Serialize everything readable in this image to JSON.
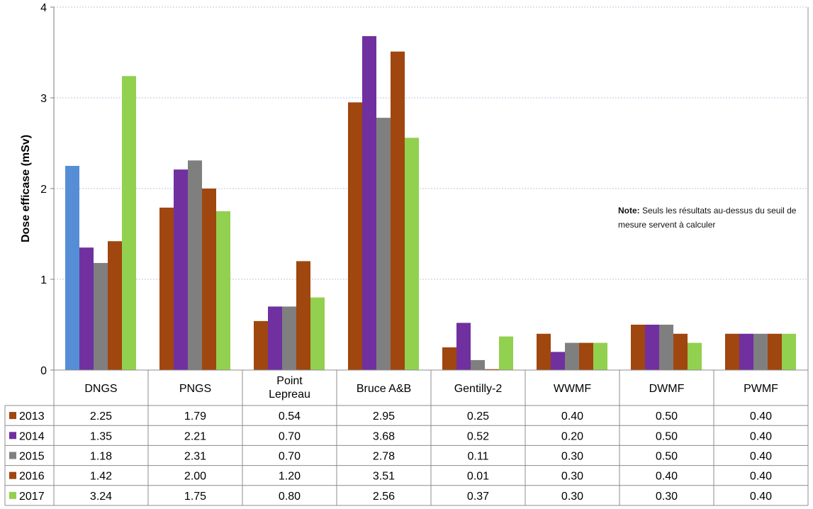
{
  "chart_data": {
    "type": "bar",
    "ylabel": "Dose efficase (mSv)",
    "xlabel": "",
    "ylim": [
      0,
      4
    ],
    "yticks": [
      0,
      1,
      2,
      3,
      4
    ],
    "grid": true,
    "legend": "data table below plot",
    "categories": [
      [
        "DNGS"
      ],
      [
        "PNGS"
      ],
      [
        "Point",
        "Lepreau"
      ],
      [
        "Bruce A&B"
      ],
      [
        "Gentilly-2"
      ],
      [
        "WWMF"
      ],
      [
        "DWMF"
      ],
      [
        "PWMF"
      ]
    ],
    "series": [
      {
        "name": "2013",
        "color": "#a0460f",
        "values": [
          2.25,
          1.79,
          0.54,
          2.95,
          0.25,
          0.4,
          0.5,
          0.4
        ],
        "labels": [
          "2.25",
          "1.79",
          "0.54",
          "2.95",
          "0.25",
          "0.40",
          "0.50",
          "0.40"
        ]
      },
      {
        "name": "2014",
        "color": "#7030a0",
        "values": [
          1.35,
          2.21,
          0.7,
          3.68,
          0.52,
          0.2,
          0.5,
          0.4
        ],
        "labels": [
          "1.35",
          "2.21",
          "0.70",
          "3.68",
          "0.52",
          "0.20",
          "0.50",
          "0.40"
        ]
      },
      {
        "name": "2015",
        "color": "#7f7f7f",
        "values": [
          1.18,
          2.31,
          0.7,
          2.78,
          0.11,
          0.3,
          0.5,
          0.4
        ],
        "labels": [
          "1.18",
          "2.31",
          "0.70",
          "2.78",
          "0.11",
          "0.30",
          "0.50",
          "0.40"
        ]
      },
      {
        "name": "2016",
        "color": "#a0460f",
        "values": [
          1.42,
          2.0,
          1.2,
          3.51,
          0.01,
          0.3,
          0.4,
          0.4
        ],
        "labels": [
          "1.42",
          "2.00",
          "1.20",
          "3.51",
          "0.01",
          "0.30",
          "0.40",
          "0.40"
        ]
      },
      {
        "name": "2017",
        "color": "#92d050",
        "values": [
          3.24,
          1.75,
          0.8,
          2.56,
          0.37,
          0.3,
          0.3,
          0.4
        ],
        "labels": [
          "3.24",
          "1.75",
          "0.80",
          "2.56",
          "0.37",
          "0.30",
          "0.30",
          "0.40"
        ]
      }
    ],
    "bar_color_overrides": [
      {
        "series": "2013",
        "category": "DNGS",
        "color": "#558ed5"
      }
    ]
  },
  "note": {
    "bold": "Note:",
    "text": " Seuls les résultats au-dessus du seuil de mesure servent à calculer"
  }
}
